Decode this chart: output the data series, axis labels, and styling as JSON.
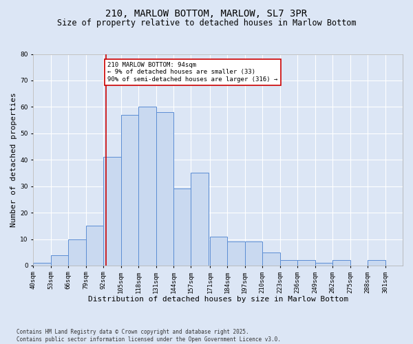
{
  "title1": "210, MARLOW BOTTOM, MARLOW, SL7 3PR",
  "title2": "Size of property relative to detached houses in Marlow Bottom",
  "xlabel": "Distribution of detached houses by size in Marlow Bottom",
  "ylabel": "Number of detached properties",
  "footnote": "Contains HM Land Registry data © Crown copyright and database right 2025.\nContains public sector information licensed under the Open Government Licence v3.0.",
  "bin_labels": [
    "40sqm",
    "53sqm",
    "66sqm",
    "79sqm",
    "92sqm",
    "105sqm",
    "118sqm",
    "131sqm",
    "144sqm",
    "157sqm",
    "171sqm",
    "184sqm",
    "197sqm",
    "210sqm",
    "223sqm",
    "236sqm",
    "249sqm",
    "262sqm",
    "275sqm",
    "288sqm",
    "301sqm"
  ],
  "bin_edges": [
    40,
    53,
    66,
    79,
    92,
    105,
    118,
    131,
    144,
    157,
    171,
    184,
    197,
    210,
    223,
    236,
    249,
    262,
    275,
    288,
    301
  ],
  "counts": [
    1,
    4,
    10,
    15,
    41,
    57,
    60,
    58,
    29,
    35,
    11,
    9,
    9,
    5,
    2,
    2,
    1,
    2,
    0,
    2,
    0
  ],
  "bar_facecolor": "#c9d9f0",
  "bar_edgecolor": "#5b8dd4",
  "vline_x": 94,
  "vline_color": "#cc0000",
  "annotation_text": "210 MARLOW BOTTOM: 94sqm\n← 9% of detached houses are smaller (33)\n90% of semi-detached houses are larger (316) →",
  "annotation_box_edgecolor": "#cc0000",
  "annotation_box_facecolor": "#ffffff",
  "ylim": [
    0,
    80
  ],
  "yticks": [
    0,
    10,
    20,
    30,
    40,
    50,
    60,
    70,
    80
  ],
  "background_color": "#dce6f5",
  "plot_bg_color": "#dce6f5",
  "grid_color": "#ffffff",
  "title1_fontsize": 10,
  "title2_fontsize": 8.5,
  "xlabel_fontsize": 8,
  "ylabel_fontsize": 8,
  "tick_fontsize": 6.5,
  "annotation_fontsize": 6.5
}
